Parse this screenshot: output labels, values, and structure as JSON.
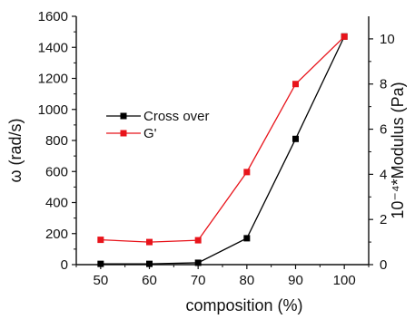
{
  "chart_data": {
    "type": "line",
    "x": [
      50,
      60,
      70,
      80,
      90,
      100
    ],
    "xlabel": "composition (%)",
    "xlim": [
      45,
      105
    ],
    "xticks": [
      50,
      60,
      70,
      80,
      90,
      100
    ],
    "ylabel_left": "ω (rad/s)",
    "ylim_left": [
      0,
      1600
    ],
    "yticks_left": [
      0,
      200,
      400,
      600,
      800,
      1000,
      1200,
      1400,
      1600
    ],
    "ylabel_right": "10⁻⁴*Modulus (Pa)",
    "ylim_right": [
      0,
      11
    ],
    "yticks_right": [
      0,
      2,
      4,
      6,
      8,
      10
    ],
    "series": [
      {
        "name": "Cross over",
        "axis": "left",
        "color": "#000000",
        "marker": "square",
        "values": [
          5,
          5,
          12,
          170,
          810,
          1470
        ]
      },
      {
        "name": "G'",
        "axis": "right",
        "color": "#e8141b",
        "marker": "square",
        "values": [
          1.1,
          1.0,
          1.08,
          4.1,
          8.0,
          10.1
        ]
      }
    ],
    "legend_position": "upper-left",
    "grid": false
  }
}
